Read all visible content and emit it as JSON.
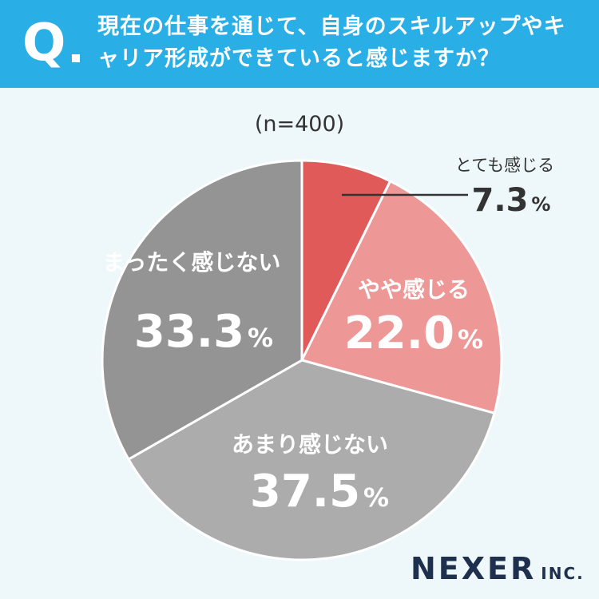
{
  "header": {
    "q_label": "Q",
    "question": "現在の仕事を通じて、自身のスキルアップやキャリア形成ができていると感じますか？"
  },
  "n_label": "(n=400)",
  "brand": {
    "name": "NEXER",
    "suffix": "INC."
  },
  "colors": {
    "header": "#29aee6",
    "background": "#eef7fa",
    "slice_1": "#e05a5a",
    "slice_2": "#ee9797",
    "slice_3": "#acacac",
    "slice_4": "#949494"
  },
  "chart_data": {
    "type": "pie",
    "n": 400,
    "unit": "%",
    "slices": [
      {
        "label": "とても感じる",
        "value": 7.3,
        "value_text": "7.3"
      },
      {
        "label": "やや感じる",
        "value": 22.0,
        "value_text": "22.0"
      },
      {
        "label": "あまり感じない",
        "value": 37.5,
        "value_text": "37.5"
      },
      {
        "label": "まったく感じない",
        "value": 33.3,
        "value_text": "33.3"
      }
    ]
  }
}
